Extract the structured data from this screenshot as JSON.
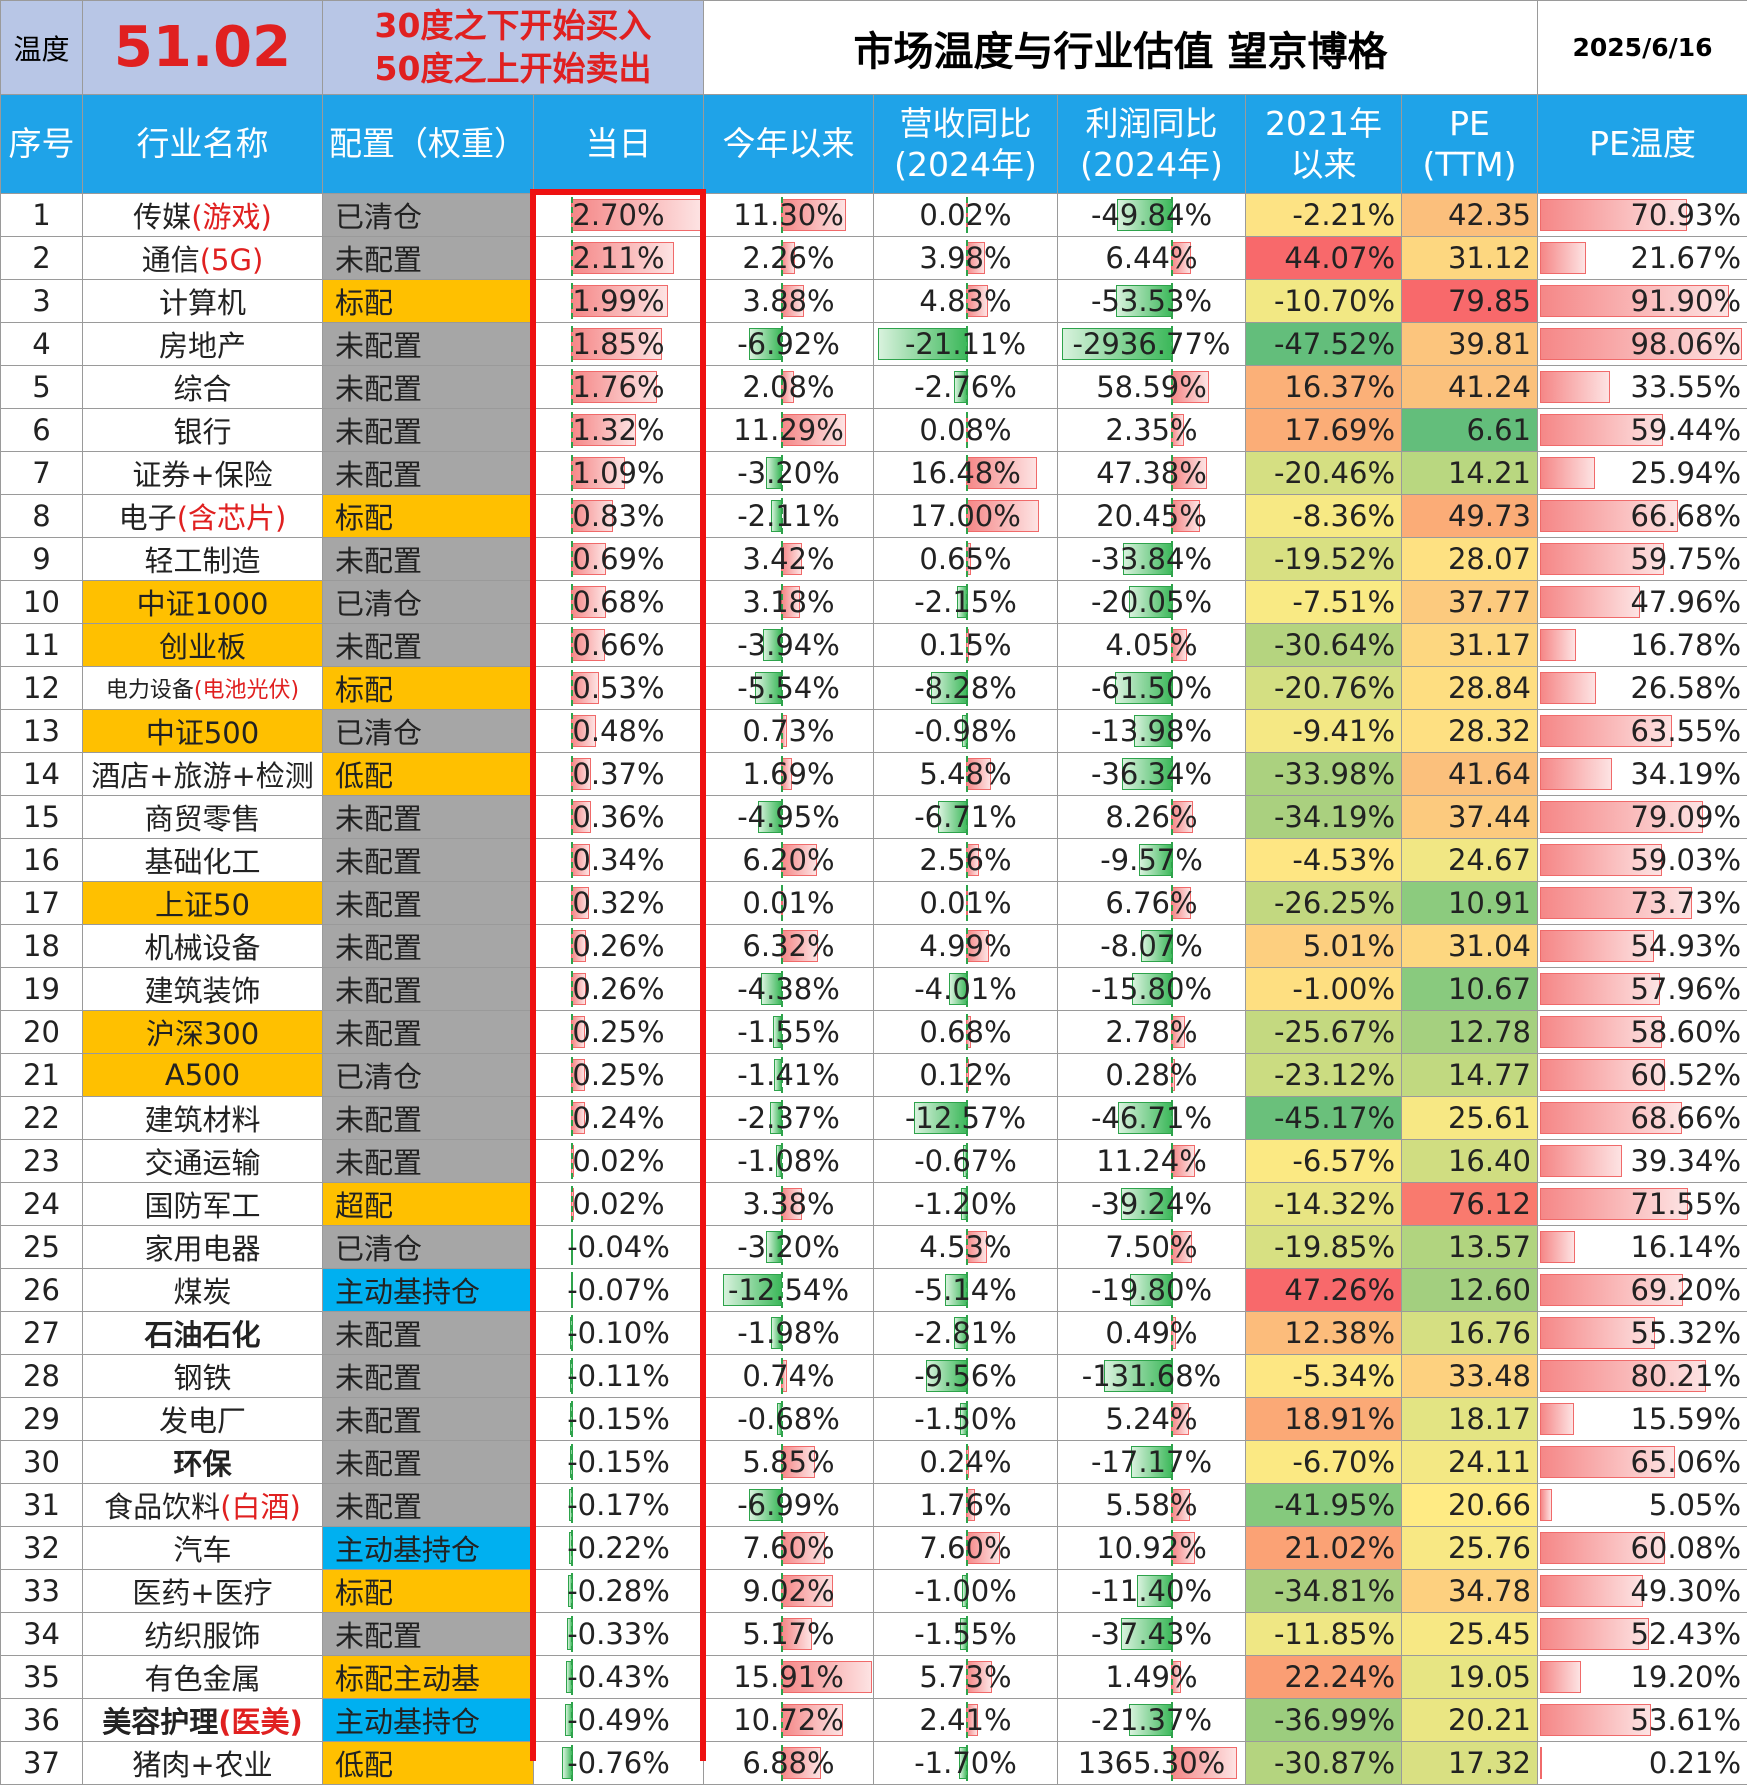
{
  "temperature_label": "温度",
  "temperature_value": "51.02",
  "rule_line1": "30度之下开始买入",
  "rule_line2": "50度之上开始卖出",
  "title": "市场温度与行业估值 望京博格",
  "date": "2025/6/16",
  "headers": [
    "序号",
    "行业名称",
    "配置（权重）",
    "当日",
    "今年以来",
    "营收同比(2024年)",
    "利润同比(2024年)",
    "2021年以来",
    "PE (TTM)",
    "PE温度"
  ],
  "colors": {
    "header_bg": "#1fa3e8",
    "alloc_gray": "#a6a6a6",
    "alloc_orange": "#ffc000",
    "alloc_blue": "#00b0f0",
    "highlight_red_box": "#ee1111"
  },
  "rows": [
    {
      "no": "1",
      "name": "传媒",
      "name_red": "(游戏)",
      "name_hl": false,
      "alloc": "已清仓",
      "alloc_color": "gray",
      "day": "2.70%",
      "ytd": "11.30%",
      "rev": "0.02%",
      "profit": "-49.84%",
      "since2021": "-2.21%",
      "pe": "42.35",
      "pe_temp": "70.93%",
      "c2021": "#fde384",
      "cpe": "#fbbf7c"
    },
    {
      "no": "2",
      "name": "通信",
      "name_red": "(5G)",
      "name_hl": false,
      "alloc": "未配置",
      "alloc_color": "gray",
      "day": "2.11%",
      "ytd": "2.26%",
      "rev": "3.98%",
      "profit": "6.44%",
      "since2021": "44.07%",
      "pe": "31.12",
      "pe_temp": "21.67%",
      "c2021": "#f8696b",
      "cpe": "#fdd780"
    },
    {
      "no": "3",
      "name": "计算机",
      "name_red": "",
      "name_hl": false,
      "alloc": "标配",
      "alloc_color": "orange",
      "day": "1.99%",
      "ytd": "3.88%",
      "rev": "4.83%",
      "profit": "-53.53%",
      "since2021": "-10.70%",
      "pe": "79.85",
      "pe_temp": "91.90%",
      "c2021": "#f2e884",
      "cpe": "#f8696b"
    },
    {
      "no": "4",
      "name": "房地产",
      "name_red": "",
      "name_hl": false,
      "alloc": "未配置",
      "alloc_color": "gray",
      "day": "1.85%",
      "ytd": "-6.92%",
      "rev": "-21.11%",
      "profit": "-2936.77%",
      "since2021": "-47.52%",
      "pe": "39.81",
      "pe_temp": "98.06%",
      "c2021": "#63be7b",
      "cpe": "#fcc57d"
    },
    {
      "no": "5",
      "name": "综合",
      "name_red": "",
      "name_hl": false,
      "alloc": "未配置",
      "alloc_color": "gray",
      "day": "1.76%",
      "ytd": "2.08%",
      "rev": "-2.76%",
      "profit": "58.59%",
      "since2021": "16.37%",
      "pe": "41.24",
      "pe_temp": "33.55%",
      "c2021": "#fbb078",
      "cpe": "#fbc17c"
    },
    {
      "no": "6",
      "name": "银行",
      "name_red": "",
      "name_hl": false,
      "alloc": "未配置",
      "alloc_color": "gray",
      "day": "1.32%",
      "ytd": "11.29%",
      "rev": "0.08%",
      "profit": "2.35%",
      "since2021": "17.69%",
      "pe": "6.61",
      "pe_temp": "59.44%",
      "c2021": "#fbad77",
      "cpe": "#63be7b"
    },
    {
      "no": "7",
      "name": "证券+保险",
      "name_red": "",
      "name_hl": false,
      "alloc": "未配置",
      "alloc_color": "gray",
      "day": "1.09%",
      "ytd": "-3.20%",
      "rev": "16.48%",
      "profit": "47.38%",
      "since2021": "-20.46%",
      "pe": "14.21",
      "pe_temp": "25.94%",
      "c2021": "#d5df82",
      "cpe": "#b9d780"
    },
    {
      "no": "8",
      "name": "电子",
      "name_red": "(含芯片)",
      "name_hl": false,
      "alloc": "标配",
      "alloc_color": "orange",
      "day": "0.83%",
      "ytd": "-2.11%",
      "rev": "17.00%",
      "profit": "20.45%",
      "since2021": "-8.36%",
      "pe": "49.73",
      "pe_temp": "66.68%",
      "c2021": "#f7e984",
      "cpe": "#fbac77"
    },
    {
      "no": "9",
      "name": "轻工制造",
      "name_red": "",
      "name_hl": false,
      "alloc": "未配置",
      "alloc_color": "gray",
      "day": "0.69%",
      "ytd": "3.42%",
      "rev": "0.65%",
      "profit": "-33.84%",
      "since2021": "-19.52%",
      "pe": "28.07",
      "pe_temp": "59.75%",
      "c2021": "#d8e082",
      "cpe": "#fee182"
    },
    {
      "no": "10",
      "name": "中证1000",
      "name_red": "",
      "name_hl": true,
      "alloc": "已清仓",
      "alloc_color": "gray",
      "day": "0.68%",
      "ytd": "3.18%",
      "rev": "-2.15%",
      "profit": "-20.05%",
      "since2021": "-7.51%",
      "pe": "37.77",
      "pe_temp": "47.96%",
      "c2021": "#f9ea84",
      "cpe": "#fcca7e"
    },
    {
      "no": "11",
      "name": "创业板",
      "name_red": "",
      "name_hl": true,
      "alloc": "未配置",
      "alloc_color": "gray",
      "day": "0.66%",
      "ytd": "-3.94%",
      "rev": "0.15%",
      "profit": "4.05%",
      "since2021": "-30.64%",
      "pe": "31.17",
      "pe_temp": "16.78%",
      "c2021": "#b5d47f",
      "cpe": "#fdd780"
    },
    {
      "no": "12",
      "name": "电力设备",
      "name_red": "(电池光伏)",
      "name_hl": false,
      "small": true,
      "alloc": "标配",
      "alloc_color": "orange",
      "day": "0.53%",
      "ytd": "-5.54%",
      "rev": "-8.28%",
      "profit": "-61.50%",
      "since2021": "-20.76%",
      "pe": "28.84",
      "pe_temp": "26.58%",
      "c2021": "#d4df82",
      "cpe": "#fede81"
    },
    {
      "no": "13",
      "name": "中证500",
      "name_red": "",
      "name_hl": true,
      "alloc": "已清仓",
      "alloc_color": "gray",
      "day": "0.48%",
      "ytd": "0.73%",
      "rev": "-0.98%",
      "profit": "-13.98%",
      "since2021": "-9.41%",
      "pe": "28.32",
      "pe_temp": "63.55%",
      "c2021": "#f5e884",
      "cpe": "#fee082"
    },
    {
      "no": "14",
      "name": "酒店+旅游+检测",
      "name_red": "",
      "name_hl": false,
      "alloc": "低配",
      "alloc_color": "orange",
      "day": "0.37%",
      "ytd": "1.69%",
      "rev": "5.48%",
      "profit": "-36.34%",
      "since2021": "-33.98%",
      "pe": "41.64",
      "pe_temp": "34.19%",
      "c2021": "#abd17f",
      "cpe": "#fbc07c"
    },
    {
      "no": "15",
      "name": "商贸零售",
      "name_red": "",
      "name_hl": false,
      "alloc": "未配置",
      "alloc_color": "gray",
      "day": "0.36%",
      "ytd": "-4.95%",
      "rev": "-6.71%",
      "profit": "8.26%",
      "since2021": "-34.19%",
      "pe": "37.44",
      "pe_temp": "79.09%",
      "c2021": "#aad07f",
      "cpe": "#fcca7e"
    },
    {
      "no": "16",
      "name": "基础化工",
      "name_red": "",
      "name_hl": false,
      "alloc": "未配置",
      "alloc_color": "gray",
      "day": "0.34%",
      "ytd": "6.20%",
      "rev": "2.56%",
      "profit": "-9.57%",
      "since2021": "-4.53%",
      "pe": "24.67",
      "pe_temp": "59.03%",
      "c2021": "#fee683",
      "cpe": "#f1e784"
    },
    {
      "no": "17",
      "name": "上证50",
      "name_red": "",
      "name_hl": true,
      "alloc": "未配置",
      "alloc_color": "gray",
      "day": "0.32%",
      "ytd": "0.01%",
      "rev": "0.01%",
      "profit": "6.76%",
      "since2021": "-26.25%",
      "pe": "10.91",
      "pe_temp": "73.73%",
      "c2021": "#c2d880",
      "cpe": "#8ccb7e"
    },
    {
      "no": "18",
      "name": "机械设备",
      "name_red": "",
      "name_hl": false,
      "alloc": "未配置",
      "alloc_color": "gray",
      "day": "0.26%",
      "ytd": "6.32%",
      "rev": "4.99%",
      "profit": "-8.07%",
      "since2021": "5.01%",
      "pe": "31.04",
      "pe_temp": "54.93%",
      "c2021": "#fdcf7f",
      "cpe": "#fdd780"
    },
    {
      "no": "19",
      "name": "建筑装饰",
      "name_red": "",
      "name_hl": false,
      "alloc": "未配置",
      "alloc_color": "gray",
      "day": "0.26%",
      "ytd": "-4.38%",
      "rev": "-4.01%",
      "profit": "-15.80%",
      "since2021": "-1.00%",
      "pe": "10.67",
      "pe_temp": "57.96%",
      "c2021": "#fedf81",
      "cpe": "#89ca7e"
    },
    {
      "no": "20",
      "name": "沪深300",
      "name_red": "",
      "name_hl": true,
      "alloc": "未配置",
      "alloc_color": "gray",
      "day": "0.25%",
      "ytd": "-1.55%",
      "rev": "0.68%",
      "profit": "2.78%",
      "since2021": "-25.67%",
      "pe": "12.78",
      "pe_temp": "58.60%",
      "c2021": "#c4d980",
      "cpe": "#a5d07f"
    },
    {
      "no": "21",
      "name": "A500",
      "name_red": "",
      "name_hl": true,
      "alloc": "已清仓",
      "alloc_color": "gray",
      "day": "0.25%",
      "ytd": "-1.41%",
      "rev": "0.12%",
      "profit": "0.28%",
      "since2021": "-23.12%",
      "pe": "14.77",
      "pe_temp": "60.52%",
      "c2021": "#cbdc81",
      "cpe": "#c1d980"
    },
    {
      "no": "22",
      "name": "建筑材料",
      "name_red": "",
      "name_hl": false,
      "alloc": "未配置",
      "alloc_color": "gray",
      "day": "0.24%",
      "ytd": "-2.37%",
      "rev": "-12.57%",
      "profit": "-46.71%",
      "since2021": "-45.17%",
      "pe": "25.61",
      "pe_temp": "68.66%",
      "c2021": "#6ac07b",
      "cpe": "#f7e884"
    },
    {
      "no": "23",
      "name": "交通运输",
      "name_red": "",
      "name_hl": false,
      "alloc": "未配置",
      "alloc_color": "gray",
      "day": "0.02%",
      "ytd": "-1.08%",
      "rev": "-0.67%",
      "profit": "11.24%",
      "since2021": "-6.57%",
      "pe": "16.40",
      "pe_temp": "39.34%",
      "c2021": "#fbe983",
      "cpe": "#d0dd81"
    },
    {
      "no": "24",
      "name": "国防军工",
      "name_red": "",
      "name_hl": false,
      "alloc": "超配",
      "alloc_color": "orange",
      "day": "0.02%",
      "ytd": "3.38%",
      "rev": "-1.20%",
      "profit": "-39.24%",
      "since2021": "-14.32%",
      "pe": "76.12",
      "pe_temp": "71.55%",
      "c2021": "#e8e583",
      "cpe": "#f97a6e"
    },
    {
      "no": "25",
      "name": "家用电器",
      "name_red": "",
      "name_hl": false,
      "alloc": "已清仓",
      "alloc_color": "gray",
      "day": "-0.04%",
      "ytd": "-3.20%",
      "rev": "4.53%",
      "profit": "7.50%",
      "since2021": "-19.85%",
      "pe": "13.57",
      "pe_temp": "16.14%",
      "c2021": "#d7e082",
      "cpe": "#b1d47f"
    },
    {
      "no": "26",
      "name": "煤炭",
      "name_red": "",
      "name_hl": false,
      "alloc": "主动基持仓",
      "alloc_color": "blue",
      "day": "-0.07%",
      "ytd": "-12.54%",
      "rev": "-5.14%",
      "profit": "-19.80%",
      "since2021": "47.26%",
      "pe": "12.60",
      "pe_temp": "69.20%",
      "c2021": "#f8696b",
      "cpe": "#a3cf7f"
    },
    {
      "no": "27",
      "name": "石油石化",
      "name_red": "",
      "name_hl": false,
      "bold": true,
      "alloc": "未配置",
      "alloc_color": "gray",
      "day": "-0.10%",
      "ytd": "-1.98%",
      "rev": "-2.81%",
      "profit": "0.49%",
      "since2021": "12.38%",
      "pe": "16.76",
      "pe_temp": "55.32%",
      "c2021": "#fcbc7b",
      "cpe": "#d5df82"
    },
    {
      "no": "28",
      "name": "钢铁",
      "name_red": "",
      "name_hl": false,
      "alloc": "未配置",
      "alloc_color": "gray",
      "day": "-0.11%",
      "ytd": "0.74%",
      "rev": "-9.56%",
      "profit": "-131.68%",
      "since2021": "-5.34%",
      "pe": "33.48",
      "pe_temp": "80.21%",
      "c2021": "#fde783",
      "cpe": "#fdd17f"
    },
    {
      "no": "29",
      "name": "发电厂",
      "name_red": "",
      "name_hl": false,
      "alloc": "未配置",
      "alloc_color": "gray",
      "day": "-0.15%",
      "ytd": "-0.68%",
      "rev": "-1.50%",
      "profit": "5.24%",
      "since2021": "18.91%",
      "pe": "18.17",
      "pe_temp": "15.59%",
      "c2021": "#fba976",
      "cpe": "#e3e483"
    },
    {
      "no": "30",
      "name": "环保",
      "name_red": "",
      "name_hl": false,
      "bold": true,
      "alloc": "未配置",
      "alloc_color": "gray",
      "day": "-0.15%",
      "ytd": "5.85%",
      "rev": "0.24%",
      "profit": "-17.17%",
      "since2021": "-6.70%",
      "pe": "24.11",
      "pe_temp": "65.06%",
      "c2021": "#fbe983",
      "cpe": "#f3e884"
    },
    {
      "no": "31",
      "name": "食品饮料",
      "name_red": "(白酒)",
      "name_hl": false,
      "alloc": "未配置",
      "alloc_color": "gray",
      "day": "-0.17%",
      "ytd": "-6.99%",
      "rev": "1.76%",
      "profit": "5.58%",
      "since2021": "-41.95%",
      "pe": "20.66",
      "pe_temp": "5.05%",
      "c2021": "#85c97d",
      "cpe": "#ffeb84"
    },
    {
      "no": "32",
      "name": "汽车",
      "name_red": "",
      "name_hl": false,
      "alloc": "主动基持仓",
      "alloc_color": "blue",
      "day": "-0.22%",
      "ytd": "7.60%",
      "rev": "7.60%",
      "profit": "10.92%",
      "since2021": "21.02%",
      "pe": "25.76",
      "pe_temp": "60.08%",
      "c2021": "#fba275",
      "cpe": "#f8e884"
    },
    {
      "no": "33",
      "name": "医药+医疗",
      "name_red": "",
      "name_hl": false,
      "alloc": "标配",
      "alloc_color": "orange",
      "day": "-0.28%",
      "ytd": "9.02%",
      "rev": "-1.00%",
      "profit": "-11.40%",
      "since2021": "-34.81%",
      "pe": "34.78",
      "pe_temp": "49.30%",
      "c2021": "#a7cf7f",
      "cpe": "#fdd07f"
    },
    {
      "no": "34",
      "name": "纺织服饰",
      "name_red": "",
      "name_hl": false,
      "alloc": "未配置",
      "alloc_color": "gray",
      "day": "-0.33%",
      "ytd": "5.17%",
      "rev": "-1.55%",
      "profit": "-37.43%",
      "since2021": "-11.85%",
      "pe": "25.45",
      "pe_temp": "52.43%",
      "c2021": "#efe784",
      "cpe": "#f7e884"
    },
    {
      "no": "35",
      "name": "有色金属",
      "name_red": "",
      "name_hl": false,
      "alloc": "标配主动基",
      "alloc_color": "orange",
      "day": "-0.43%",
      "ytd": "15.91%",
      "rev": "5.73%",
      "profit": "1.49%",
      "since2021": "22.24%",
      "pe": "19.05",
      "pe_temp": "19.20%",
      "c2021": "#fa9e74",
      "cpe": "#e7e583"
    },
    {
      "no": "36",
      "name": "美容护理",
      "name_red": "(医美)",
      "name_hl": false,
      "bold": true,
      "alloc": "主动基持仓",
      "alloc_color": "blue",
      "day": "-0.49%",
      "ytd": "10.72%",
      "rev": "2.41%",
      "profit": "-21.37%",
      "since2021": "-36.99%",
      "pe": "20.21",
      "pe_temp": "53.61%",
      "c2021": "#9ccd7e",
      "cpe": "#eae683"
    },
    {
      "no": "37",
      "name": "猪肉+农业",
      "name_red": "",
      "name_hl": false,
      "alloc": "低配",
      "alloc_color": "orange",
      "day": "-0.76%",
      "ytd": "6.88%",
      "rev": "-1.70%",
      "profit": "1365.30%",
      "since2021": "-30.87%",
      "pe": "17.32",
      "pe_temp": "0.21%",
      "c2021": "#b4d47f",
      "cpe": "#d9e082"
    }
  ]
}
